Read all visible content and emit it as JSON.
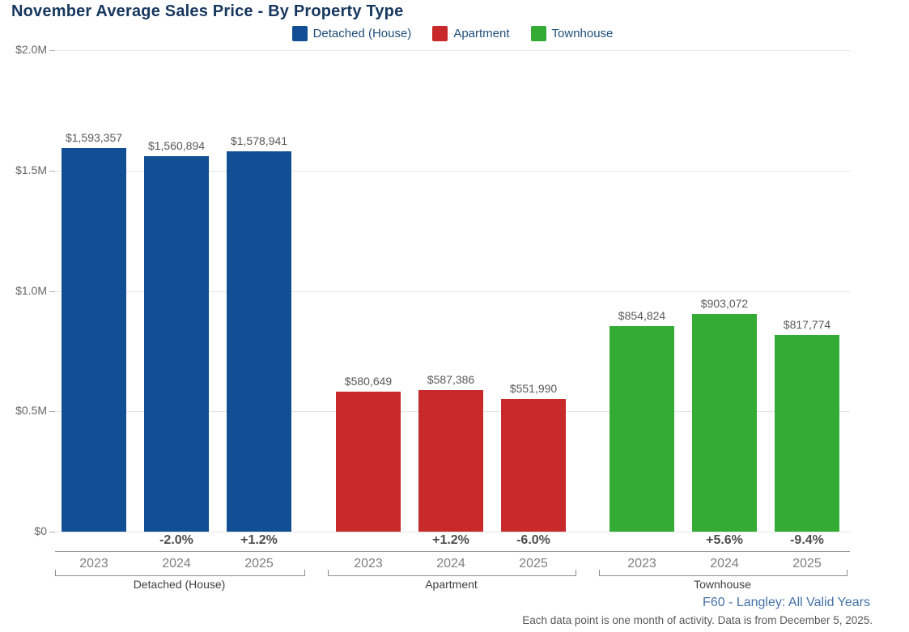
{
  "title": "November Average Sales Price - By Property Type",
  "legend": {
    "items": [
      {
        "label": "Detached (House)",
        "color": "#114E93"
      },
      {
        "label": "Apartment",
        "color": "#C8292B"
      },
      {
        "label": "Townhouse",
        "color": "#33AB34"
      }
    ]
  },
  "chart_data": {
    "type": "bar",
    "title": "November Average Sales Price - By Property Type",
    "xlabel": "",
    "ylabel": "",
    "ylim": [
      0,
      2000000
    ],
    "grid": true,
    "legend_position": "top-center",
    "yticks": [
      {
        "value": 0,
        "label": "$0"
      },
      {
        "value": 500000,
        "label": "$0.5M"
      },
      {
        "value": 1000000,
        "label": "$1.0M"
      },
      {
        "value": 1500000,
        "label": "$1.5M"
      },
      {
        "value": 2000000,
        "label": "$2.0M"
      }
    ],
    "groups": [
      {
        "name": "Detached (House)",
        "color": "#114E93",
        "bars": [
          {
            "year": "2023",
            "value": 1593357,
            "label": "$1,593,357",
            "pct_change": ""
          },
          {
            "year": "2024",
            "value": 1560894,
            "label": "$1,560,894",
            "pct_change": "-2.0%"
          },
          {
            "year": "2025",
            "value": 1578941,
            "label": "$1,578,941",
            "pct_change": "+1.2%"
          }
        ]
      },
      {
        "name": "Apartment",
        "color": "#C8292B",
        "bars": [
          {
            "year": "2023",
            "value": 580649,
            "label": "$580,649",
            "pct_change": ""
          },
          {
            "year": "2024",
            "value": 587386,
            "label": "$587,386",
            "pct_change": "+1.2%"
          },
          {
            "year": "2025",
            "value": 551990,
            "label": "$551,990",
            "pct_change": "-6.0%"
          }
        ]
      },
      {
        "name": "Townhouse",
        "color": "#33AB34",
        "bars": [
          {
            "year": "2023",
            "value": 854824,
            "label": "$854,824",
            "pct_change": ""
          },
          {
            "year": "2024",
            "value": 903072,
            "label": "$903,072",
            "pct_change": "+5.6%"
          },
          {
            "year": "2025",
            "value": 817774,
            "label": "$817,774",
            "pct_change": "-9.4%"
          }
        ]
      }
    ]
  },
  "footer": {
    "source": "F60 - Langley: All Valid Years",
    "note": "Each data point is one month of activity. Data is from December 5, 2025."
  },
  "colors": {
    "title_text": "#17375E",
    "legend_text": "#1F4E79",
    "axis_label": "#666666",
    "gridline": "#E6E6E6",
    "value_label": "#595959",
    "pct_label": "#4D4D4D",
    "year_label": "#808080",
    "group_label": "#404040",
    "source_text": "#4572A7",
    "note_text": "#595959"
  }
}
